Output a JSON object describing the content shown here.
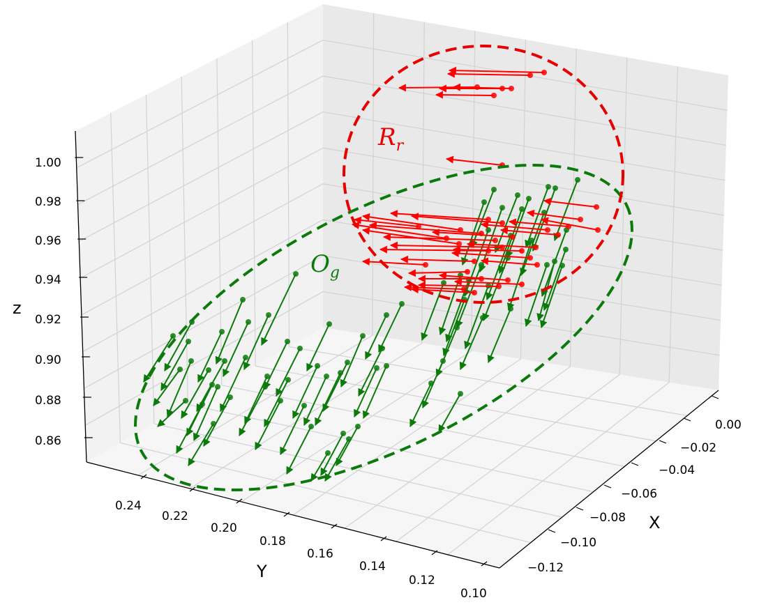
{
  "chart_data": {
    "type": "3d-quiver",
    "axes": {
      "x": {
        "label": "X",
        "ticks": [
          "0.00",
          "−0.02",
          "−0.04",
          "−0.06",
          "−0.08",
          "−0.10",
          "−0.12"
        ]
      },
      "y": {
        "label": "Y",
        "ticks": [
          "0.24",
          "0.22",
          "0.20",
          "0.18",
          "0.16",
          "0.14",
          "0.12",
          "0.10"
        ]
      },
      "z": {
        "label": "z",
        "ticks": [
          "1.00",
          "0.98",
          "0.96",
          "0.94",
          "0.92",
          "0.90",
          "0.88",
          "0.86"
        ]
      }
    },
    "grid": true,
    "colors": {
      "green": "#0b7a0b",
      "red": "#ff0000",
      "pane": "#f2f2f2",
      "grid": "#d0d0d0"
    },
    "annotations": [
      {
        "id": "O",
        "main": "O",
        "sub": "g",
        "color": "#0b7a0b",
        "style": "dashed-ellipse"
      },
      {
        "id": "R",
        "main": "R",
        "sub": "r",
        "color": "#e60000",
        "style": "dashed-ellipse"
      }
    ],
    "series": [
      {
        "group": "O",
        "color": "#0b7a0b",
        "points": [
          [
            424,
            393,
            375,
            495
          ],
          [
            348,
            430,
            310,
            522
          ],
          [
            385,
            452,
            350,
            530
          ],
          [
            356,
            462,
            320,
            540
          ],
          [
            318,
            476,
            284,
            548
          ],
          [
            275,
            462,
            236,
            532
          ],
          [
            270,
            490,
            231,
            560
          ],
          [
            248,
            482,
            206,
            548
          ],
          [
            322,
            518,
            282,
            590
          ],
          [
            299,
            531,
            260,
            600
          ],
          [
            304,
            552,
            268,
            625
          ],
          [
            290,
            580,
            253,
            650
          ],
          [
            306,
            608,
            270,
            668
          ],
          [
            258,
            530,
            220,
            582
          ],
          [
            266,
            575,
            226,
            612
          ],
          [
            312,
            555,
            278,
            632
          ],
          [
            330,
            570,
            292,
            640
          ],
          [
            380,
            555,
            343,
            625
          ],
          [
            412,
            490,
            379,
            558
          ],
          [
            430,
            500,
            396,
            568
          ],
          [
            455,
            525,
            420,
            600
          ],
          [
            413,
            545,
            379,
            612
          ],
          [
            402,
            575,
            366,
            645
          ],
          [
            436,
            582,
            402,
            652
          ],
          [
            446,
            612,
            411,
            680
          ],
          [
            472,
            465,
            440,
            532
          ],
          [
            498,
            520,
            463,
            590
          ],
          [
            488,
            535,
            452,
            610
          ],
          [
            520,
            482,
            489,
            555
          ],
          [
            548,
            500,
            514,
            568
          ],
          [
            554,
            452,
            524,
            515
          ],
          [
            576,
            436,
            543,
            505
          ],
          [
            618,
            550,
            588,
            612
          ],
          [
            660,
            565,
            629,
            620
          ],
          [
            635,
            518,
            606,
            585
          ],
          [
            513,
            612,
            482,
            668
          ],
          [
            492,
            622,
            460,
            682
          ],
          [
            540,
            528,
            508,
            598
          ],
          [
            554,
            525,
            521,
            600
          ],
          [
            468,
            540,
            436,
            610
          ],
          [
            383,
            540,
            351,
            608
          ],
          [
            352,
            513,
            316,
            590
          ],
          [
            274,
            518,
            240,
            598
          ],
          [
            500,
            630,
            466,
            690
          ],
          [
            470,
            650,
            446,
            690
          ]
        ]
      },
      {
        "group": "O",
        "color": "#0b7a0b",
        "points": [
          [
            708,
            272,
            676,
            355
          ],
          [
            742,
            280,
            710,
            362
          ],
          [
            758,
            285,
            727,
            370
          ],
          [
            786,
            268,
            754,
            355
          ],
          [
            796,
            270,
            764,
            360
          ],
          [
            828,
            258,
            795,
            345
          ],
          [
            694,
            290,
            663,
            380
          ],
          [
            720,
            298,
            688,
            390
          ],
          [
            748,
            300,
            716,
            392
          ],
          [
            780,
            305,
            747,
            395
          ],
          [
            812,
            330,
            777,
            425
          ],
          [
            700,
            330,
            666,
            425
          ],
          [
            732,
            338,
            698,
            430
          ],
          [
            762,
            345,
            729,
            445
          ],
          [
            728,
            370,
            693,
            460
          ],
          [
            690,
            380,
            655,
            470
          ],
          [
            660,
            395,
            631,
            480
          ],
          [
            672,
            402,
            640,
            490
          ],
          [
            700,
            410,
            667,
            500
          ],
          [
            732,
            443,
            700,
            520
          ],
          [
            636,
            406,
            605,
            488
          ],
          [
            666,
            430,
            636,
            510
          ],
          [
            692,
            456,
            660,
            530
          ],
          [
            655,
            470,
            626,
            540
          ],
          [
            811,
            358,
            780,
            445
          ],
          [
            795,
            375,
            772,
            460
          ],
          [
            806,
            381,
            776,
            470
          ],
          [
            784,
            380,
            754,
            468
          ]
        ]
      },
      {
        "group": "R",
        "color": "#ff0000",
        "points": [
          [
            780,
            104,
            644,
            101
          ],
          [
            760,
            108,
            642,
            106
          ],
          [
            720,
            127,
            630,
            127
          ],
          [
            733,
            127,
            650,
            125
          ],
          [
            708,
            137,
            625,
            136
          ],
          [
            684,
            125,
            572,
            126
          ],
          [
            720,
            237,
            640,
            228
          ],
          [
            855,
            297,
            780,
            288
          ],
          [
            857,
            330,
            776,
            315
          ],
          [
            832,
            315,
            756,
            305
          ],
          [
            815,
            325,
            730,
            318
          ],
          [
            800,
            337,
            718,
            330
          ],
          [
            785,
            330,
            690,
            322
          ],
          [
            768,
            355,
            670,
            350
          ],
          [
            748,
            360,
            650,
            358
          ],
          [
            735,
            340,
            620,
            333
          ],
          [
            720,
            320,
            590,
            310
          ],
          [
            700,
            315,
            560,
            306
          ],
          [
            690,
            335,
            530,
            323
          ],
          [
            710,
            345,
            550,
            340
          ],
          [
            720,
            355,
            560,
            352
          ],
          [
            700,
            360,
            545,
            358
          ],
          [
            680,
            375,
            575,
            372
          ],
          [
            670,
            390,
            586,
            392
          ],
          [
            690,
            400,
            600,
            400
          ],
          [
            728,
            402,
            630,
            395
          ],
          [
            748,
            408,
            652,
            404
          ],
          [
            760,
            370,
            648,
            363
          ],
          [
            770,
            380,
            690,
            374
          ],
          [
            658,
            350,
            520,
            330
          ],
          [
            640,
            342,
            505,
            322
          ],
          [
            660,
            330,
            520,
            310
          ],
          [
            600,
            325,
            508,
            315
          ],
          [
            610,
            380,
            520,
            375
          ],
          [
            680,
            420,
            590,
            415
          ],
          [
            715,
            411,
            600,
            409
          ],
          [
            665,
            415,
            580,
            412
          ]
        ]
      }
    ]
  }
}
